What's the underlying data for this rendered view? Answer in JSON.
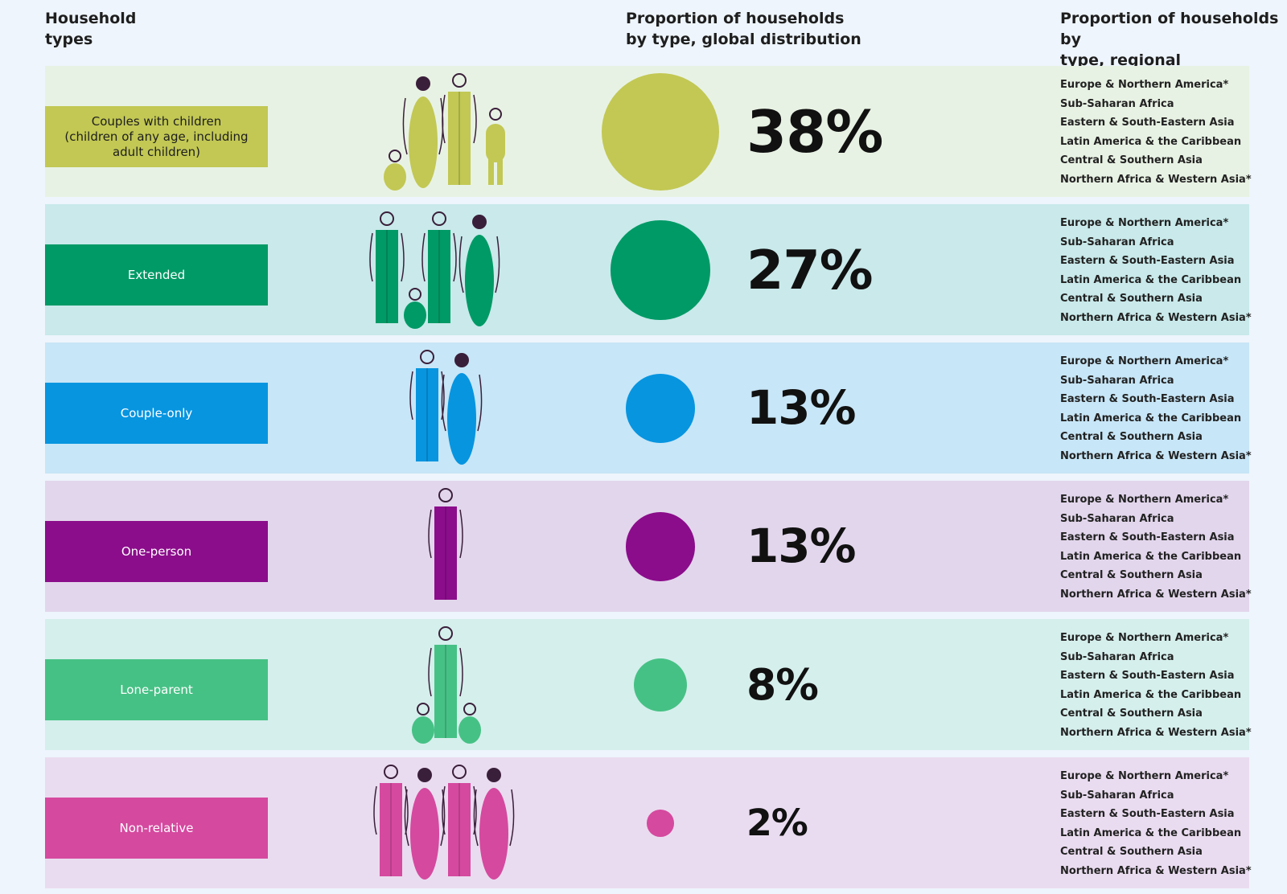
{
  "headers": {
    "types": "Household\ntypes",
    "global": "Proportion of households\nby type, global distribution",
    "regional": "Proportion of households by\ntype, regional distribution"
  },
  "chart_data": {
    "type": "bubble",
    "categories": [
      "Couples with children\n(children of any age, including\nadult children)",
      "Extended",
      "Couple-only",
      "One-person",
      "Lone-parent",
      "Non-relative"
    ],
    "values": [
      38,
      27,
      13,
      13,
      8,
      2
    ],
    "value_labels": [
      "38%",
      "27%",
      "13%",
      "13%",
      "8%",
      "2%"
    ],
    "colors": [
      "#c2c853",
      "#009a66",
      "#0795e0",
      "#8b0d8b",
      "#46c185",
      "#d5499f"
    ],
    "row_backgrounds": [
      "#e8f2e4",
      "#c9e9ea",
      "#c7e6f7",
      "#e2d6ec",
      "#d5efec",
      "#eadcf0"
    ],
    "label_text_colors": [
      "#1e1e1e",
      "#ffffff",
      "#ffffff",
      "#ffffff",
      "#ffffff",
      "#ffffff"
    ],
    "figure_counts": [
      4,
      4,
      2,
      1,
      3,
      4
    ],
    "regions": [
      "Europe & Northern America*",
      "Sub-Saharan Africa",
      "Eastern & South-Eastern Asia",
      "Latin America & the Caribbean",
      "Central & Southern Asia",
      "Northern Africa & Western Asia*"
    ]
  }
}
